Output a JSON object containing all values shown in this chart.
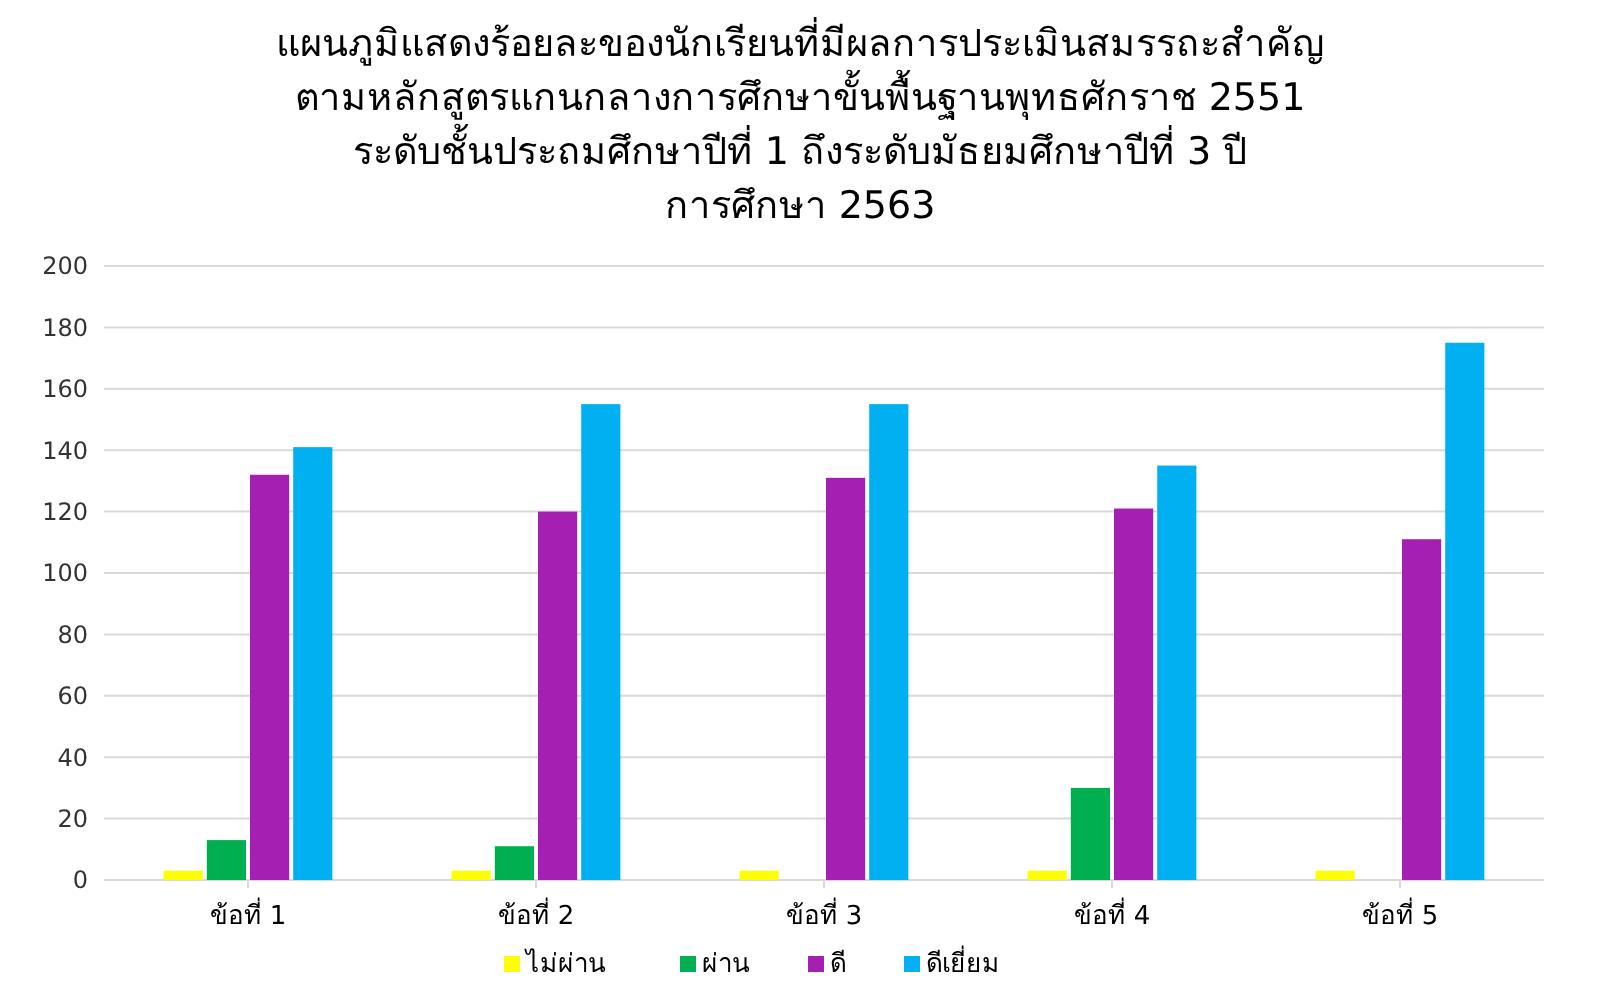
{
  "chart_data": {
    "type": "bar",
    "title": "แผนภูมิแสดงร้อยละของนักเรียนที่มีผลการประเมินสมรรถะสำคัญ\nตามหลักสูตรแกนกลางการศึกษาขั้นพื้นฐานพุทธศักราช 2551\nระดับชั้นประถมศึกษาปีที่ 1 ถึงระดับมัธยมศึกษาปีที่ 3 ปี\nการศึกษา 2563",
    "categories": [
      "ข้อที่ 1",
      "ข้อที่ 2",
      "ข้อที่ 3",
      "ข้อที่ 4",
      "ข้อที่ 5"
    ],
    "series": [
      {
        "name": "ไม่ผ่าน",
        "color": "#ffff00",
        "values": [
          3,
          3,
          3,
          3,
          3
        ]
      },
      {
        "name": "ผ่าน",
        "color": "#00b050",
        "values": [
          13,
          11,
          0,
          30,
          0
        ]
      },
      {
        "name": "ดี",
        "color": "#a61fb3",
        "values": [
          132,
          120,
          131,
          121,
          111
        ]
      },
      {
        "name": "ดีเยี่ยม",
        "color": "#00b0f0",
        "values": [
          141,
          155,
          155,
          135,
          175
        ]
      }
    ],
    "ylim": [
      0,
      200
    ],
    "yticks": [
      0,
      20,
      40,
      60,
      80,
      100,
      120,
      140,
      160,
      180,
      200
    ],
    "grid": "y",
    "legend": "bottom"
  }
}
